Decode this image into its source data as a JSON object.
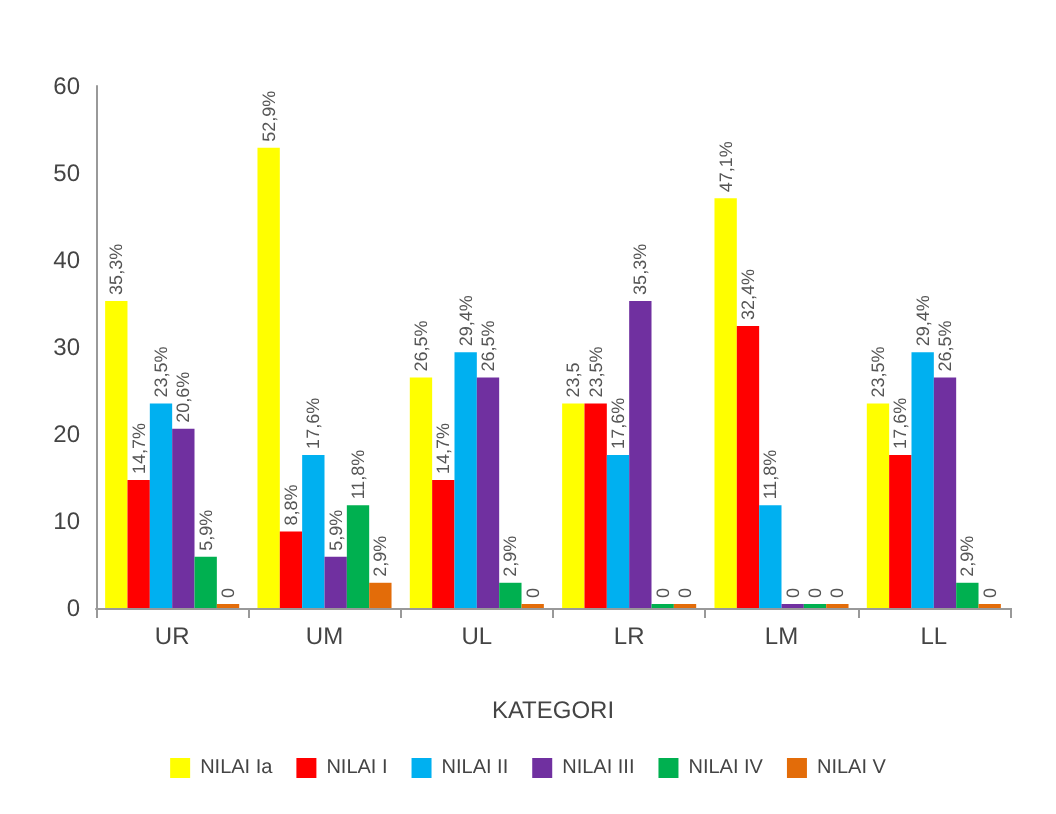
{
  "chart_data": {
    "type": "bar",
    "xlabel": "KATEGORI",
    "categories": [
      "UR",
      "UM",
      "UL",
      "LR",
      "LM",
      "LL"
    ],
    "ylim": [
      0,
      60
    ],
    "yticks": [
      0,
      10,
      20,
      30,
      40,
      50,
      60
    ],
    "grid": false,
    "legend": "bottom",
    "series": [
      {
        "name": "NILAI Ia",
        "color": "#ffff00",
        "values": [
          35.3,
          52.9,
          26.5,
          23.5,
          47.1,
          23.5
        ],
        "value_labels": [
          "35,3%",
          "52,9%",
          "26,5%",
          "23,5",
          "47,1%",
          "23,5%"
        ]
      },
      {
        "name": "NILAI I",
        "color": "#ff0000",
        "values": [
          14.7,
          8.8,
          14.7,
          23.5,
          32.4,
          17.6
        ],
        "value_labels": [
          "14,7%",
          "8,8%",
          "14,7%",
          "23,5%",
          "32,4%",
          "17,6%"
        ]
      },
      {
        "name": "NILAI II",
        "color": "#00b0f0",
        "values": [
          23.5,
          17.6,
          29.4,
          17.6,
          11.8,
          29.4
        ],
        "value_labels": [
          "23,5%",
          "17,6%",
          "29,4%",
          "17,6%",
          "11,8%",
          "29,4%"
        ]
      },
      {
        "name": "NILAI III",
        "color": "#7030a0",
        "values": [
          20.6,
          5.9,
          26.5,
          35.3,
          0,
          26.5
        ],
        "value_labels": [
          "20,6%",
          "5,9%",
          "26,5%",
          "35,3%",
          "0",
          "26,5%"
        ]
      },
      {
        "name": "NILAI IV",
        "color": "#00b050",
        "values": [
          5.9,
          11.8,
          2.9,
          0,
          0,
          2.9
        ],
        "value_labels": [
          "5,9%",
          "11,8%",
          "2,9%",
          "0",
          "0",
          "2,9%"
        ]
      },
      {
        "name": "NILAI V",
        "color": "#e36c09",
        "values": [
          0,
          2.9,
          0,
          0,
          0,
          0
        ],
        "value_labels": [
          "0",
          "2,9%",
          "0",
          "0",
          "0",
          "0"
        ]
      }
    ]
  }
}
